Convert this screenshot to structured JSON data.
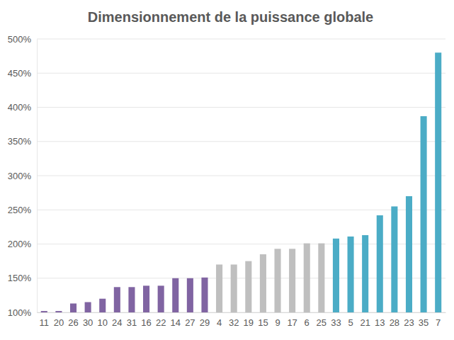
{
  "chart_data": {
    "type": "bar",
    "title": "Dimensionnement de la puissance globale",
    "categories": [
      "11",
      "20",
      "26",
      "30",
      "10",
      "24",
      "31",
      "16",
      "22",
      "14",
      "27",
      "29",
      "4",
      "32",
      "19",
      "15",
      "9",
      "17",
      "6",
      "25",
      "33",
      "5",
      "21",
      "13",
      "28",
      "23",
      "35",
      "7"
    ],
    "values": [
      102,
      102,
      113,
      115,
      120,
      137,
      137,
      139,
      139,
      150,
      150,
      151,
      170,
      170,
      175,
      185,
      193,
      193,
      201,
      201,
      208,
      211,
      213,
      242,
      255,
      270,
      387,
      480
    ],
    "colors": [
      "#8064a2",
      "#8064a2",
      "#8064a2",
      "#8064a2",
      "#8064a2",
      "#8064a2",
      "#8064a2",
      "#8064a2",
      "#8064a2",
      "#8064a2",
      "#8064a2",
      "#8064a2",
      "#bfbfbf",
      "#bfbfbf",
      "#bfbfbf",
      "#bfbfbf",
      "#bfbfbf",
      "#bfbfbf",
      "#bfbfbf",
      "#bfbfbf",
      "#4bacc6",
      "#4bacc6",
      "#4bacc6",
      "#4bacc6",
      "#4bacc6",
      "#4bacc6",
      "#4bacc6",
      "#4bacc6"
    ],
    "ylim": [
      100,
      500
    ],
    "yticks": [
      {
        "value": 100,
        "label": "100%"
      },
      {
        "value": 150,
        "label": "150%"
      },
      {
        "value": 200,
        "label": "200%"
      },
      {
        "value": 250,
        "label": "250%"
      },
      {
        "value": 300,
        "label": "300%"
      },
      {
        "value": 350,
        "label": "350%"
      },
      {
        "value": 400,
        "label": "400%"
      },
      {
        "value": 450,
        "label": "450%"
      },
      {
        "value": 500,
        "label": "500%"
      }
    ],
    "grid": true
  }
}
